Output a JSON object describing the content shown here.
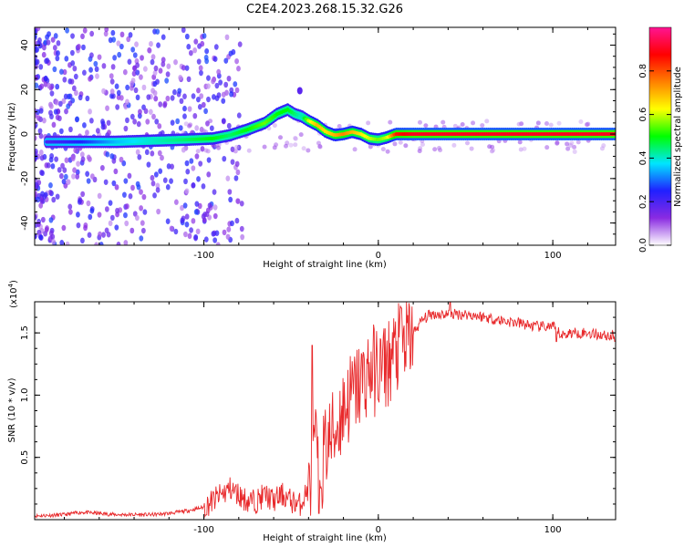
{
  "title": "C2E4.2023.268.15.32.G26",
  "colors": {
    "snr_line": "#e8282a",
    "frame": "#000000",
    "spectrogram_background": "#ffffff"
  },
  "chart_data": [
    {
      "type": "heatmap",
      "xlabel": "Height of straight line (km)",
      "ylabel": "Frequency (Hz)",
      "xlim": [
        -197,
        136
      ],
      "ylim": [
        -50,
        48
      ],
      "xticks": [
        -100,
        0,
        100
      ],
      "xtick_labels": [
        "-100",
        "0",
        "100"
      ],
      "yticks": [
        -40,
        -20,
        0,
        20,
        40
      ],
      "ytick_labels": [
        "-40",
        "-20",
        "0",
        "20",
        "40"
      ],
      "colorbar": {
        "label": "Normalized spectral amplitude",
        "range": [
          0,
          1
        ],
        "ticks": [
          0.0,
          0.2,
          0.4,
          0.6,
          0.8
        ],
        "tick_labels": [
          "0.0",
          "0.2",
          "0.4",
          "0.6",
          "0.8"
        ],
        "colormap": [
          "#ffffff",
          "#8a2be2",
          "#2020ff",
          "#00e5ff",
          "#00ff00",
          "#ffff00",
          "#ff8000",
          "#ff0000",
          "#ff1493"
        ]
      },
      "ridge": {
        "x": [
          -190,
          -170,
          -150,
          -130,
          -110,
          -95,
          -85,
          -75,
          -65,
          -58,
          -52,
          -48,
          -44,
          -40,
          -35,
          -30,
          -25,
          -20,
          -15,
          -10,
          -5,
          0,
          5,
          10,
          20,
          40,
          60,
          80,
          100,
          120,
          136
        ],
        "frequency": [
          -3.5,
          -3.5,
          -3.5,
          -3,
          -2.5,
          -2,
          -0.5,
          2,
          5,
          9,
          11,
          9,
          8,
          6,
          4,
          1,
          -0.5,
          0,
          1,
          0,
          -2,
          -2.5,
          -1.5,
          0,
          0,
          0,
          0,
          0,
          0,
          0,
          0
        ],
        "amplitude": [
          0.2,
          0.25,
          0.35,
          0.4,
          0.45,
          0.5,
          0.45,
          0.5,
          0.55,
          0.5,
          0.5,
          0.45,
          0.4,
          0.6,
          0.7,
          0.65,
          0.7,
          0.75,
          0.7,
          0.65,
          0.6,
          0.55,
          0.6,
          0.85,
          0.9,
          0.9,
          0.9,
          0.9,
          0.9,
          0.9,
          0.9
        ]
      }
    },
    {
      "type": "line",
      "xlabel": "Height of straight line (km)",
      "ylabel": "SNR (10 * v/v)",
      "y_multiplier_label": "(x10",
      "y_multiplier_exponent": "4",
      "y_multiplier_close": ")",
      "xlim": [
        -197,
        136
      ],
      "ylim": [
        0,
        17500
      ],
      "xticks": [
        -100,
        0,
        100
      ],
      "xtick_labels": [
        "-100",
        "0",
        "100"
      ],
      "yticks": [
        5000,
        10000,
        15000
      ],
      "ytick_labels": [
        "0.5",
        "1.0",
        "1.5"
      ],
      "series": [
        {
          "x": [
            -197,
            -180,
            -170,
            -160,
            -150,
            -140,
            -130,
            -120,
            -110,
            -100,
            -95,
            -90,
            -85,
            -80,
            -75,
            -70,
            -65,
            -60,
            -55,
            -50,
            -45,
            -40,
            -37,
            -35,
            -33,
            -30,
            -25,
            -20,
            -15,
            -10,
            -5,
            0,
            5,
            10,
            15,
            20,
            25,
            30,
            35,
            40,
            45,
            50,
            60,
            70,
            80,
            90,
            100,
            105,
            110,
            120,
            130,
            136
          ],
          "y": [
            300,
            400,
            600,
            500,
            400,
            400,
            400,
            500,
            700,
            1000,
            1500,
            2000,
            2500,
            2000,
            1500,
            1500,
            2000,
            1500,
            2000,
            1500,
            1200,
            2500,
            5000,
            6000,
            4000,
            6000,
            7000,
            9000,
            10000,
            11000,
            12000,
            12000,
            12500,
            13500,
            14000,
            15000,
            16000,
            16500,
            16500,
            16500,
            16500,
            16500,
            16300,
            16000,
            15800,
            15500,
            15500,
            14800,
            15000,
            15000,
            14800,
            14700
          ],
          "spikes": [
            {
              "x": -38,
              "y": 14000
            },
            {
              "x": -34,
              "y": 500
            },
            {
              "x": 13,
              "y": 17000
            },
            {
              "x": 41,
              "y": 17500
            },
            {
              "x": 102,
              "y": 16500
            },
            {
              "x": 102,
              "y": 14300
            }
          ]
        }
      ]
    }
  ]
}
